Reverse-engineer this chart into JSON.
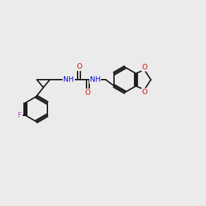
{
  "background_color": "#ebebeb",
  "bond_color": "#1a1a1a",
  "line_width": 1.4,
  "atom_colors": {
    "O": "#dd1100",
    "N": "#0000cc",
    "F": "#bb44bb",
    "C": "#1a1a1a"
  },
  "figsize": [
    3.0,
    3.0
  ],
  "dpi": 100
}
